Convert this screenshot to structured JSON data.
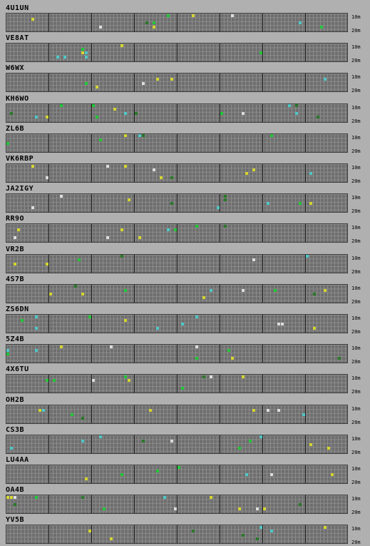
{
  "band_labels": {
    "top": "10m",
    "bottom": "20m"
  },
  "colors": {
    "spot_green": "#22c838",
    "spot_yellow": "#d6d630",
    "spot_cyan": "#50c8c8",
    "spot_white": "#dedede",
    "spot_dark_green": "#2a7a2a",
    "grid_bg": "#6e6e6e",
    "grid_line": "#8c8c8c",
    "hour_divider": "#1a1a1a"
  },
  "stations": [
    {
      "callsign": "4U1UN"
    },
    {
      "callsign": "VE8AT"
    },
    {
      "callsign": "W6WX"
    },
    {
      "callsign": "KH6WO"
    },
    {
      "callsign": "ZL6B"
    },
    {
      "callsign": "VK6RBP"
    },
    {
      "callsign": "JA2IGY"
    },
    {
      "callsign": "RR9O"
    },
    {
      "callsign": "VR2B"
    },
    {
      "callsign": "4S7B"
    },
    {
      "callsign": "ZS6DN"
    },
    {
      "callsign": "5Z4B"
    },
    {
      "callsign": "4X6TU"
    },
    {
      "callsign": "OH2B"
    },
    {
      "callsign": "CS3B"
    },
    {
      "callsign": "LU4AA"
    },
    {
      "callsign": "OA4B"
    },
    {
      "callsign": "YV5B"
    }
  ]
}
